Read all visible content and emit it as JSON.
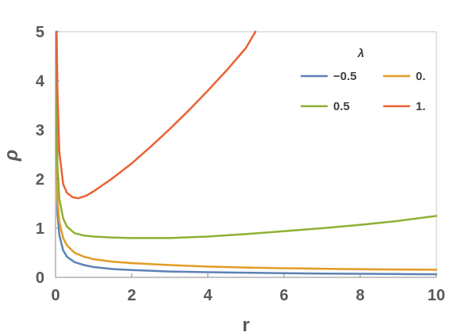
{
  "chart_data": {
    "type": "line",
    "title": "",
    "xlabel": "r",
    "ylabel": "ρ",
    "xlim": [
      0,
      10
    ],
    "ylim": [
      0,
      5
    ],
    "xticks": [
      "0",
      "2",
      "4",
      "6",
      "8",
      "10"
    ],
    "yticks": [
      "0",
      "1",
      "2",
      "3",
      "4",
      "5"
    ],
    "grid": false,
    "legend": {
      "title": "λ",
      "placement": "top-right"
    },
    "series": [
      {
        "name": "−0.5",
        "color": "#5E81B5",
        "x": [
          0.02,
          0.05,
          0.1,
          0.2,
          0.3,
          0.5,
          0.75,
          1,
          1.5,
          2,
          3,
          4,
          5,
          6,
          7,
          8,
          9,
          10
        ],
        "y": [
          5.0,
          1.3,
          0.86,
          0.55,
          0.42,
          0.31,
          0.25,
          0.21,
          0.17,
          0.15,
          0.12,
          0.105,
          0.095,
          0.085,
          0.078,
          0.072,
          0.067,
          0.063
        ]
      },
      {
        "name": "0.",
        "color": "#E19C24",
        "x": [
          0.02,
          0.05,
          0.1,
          0.2,
          0.3,
          0.5,
          0.75,
          1,
          1.5,
          2,
          3,
          4,
          5,
          6,
          7,
          8,
          9,
          10
        ],
        "y": [
          5.0,
          1.6,
          1.13,
          0.8,
          0.65,
          0.5,
          0.42,
          0.37,
          0.32,
          0.29,
          0.25,
          0.22,
          0.2,
          0.185,
          0.175,
          0.165,
          0.16,
          0.155
        ]
      },
      {
        "name": "0.5",
        "color": "#8FB032",
        "x": [
          0.02,
          0.05,
          0.1,
          0.2,
          0.3,
          0.5,
          0.75,
          1,
          1.5,
          2,
          2.5,
          3,
          4,
          5,
          6,
          7,
          8,
          9,
          10
        ],
        "y": [
          5.0,
          2.3,
          1.6,
          1.2,
          1.03,
          0.9,
          0.85,
          0.83,
          0.81,
          0.8,
          0.8,
          0.8,
          0.83,
          0.88,
          0.94,
          1.0,
          1.07,
          1.15,
          1.25
        ]
      },
      {
        "name": "1.",
        "color": "#EB6235",
        "x": [
          0.03,
          0.05,
          0.1,
          0.2,
          0.3,
          0.45,
          0.6,
          0.8,
          1,
          1.5,
          2,
          2.5,
          3,
          3.5,
          4,
          4.5,
          5,
          5.25
        ],
        "y": [
          5.0,
          3.8,
          2.55,
          1.9,
          1.72,
          1.63,
          1.61,
          1.66,
          1.75,
          2.02,
          2.32,
          2.66,
          3.02,
          3.4,
          3.8,
          4.22,
          4.67,
          5.0
        ]
      }
    ]
  }
}
